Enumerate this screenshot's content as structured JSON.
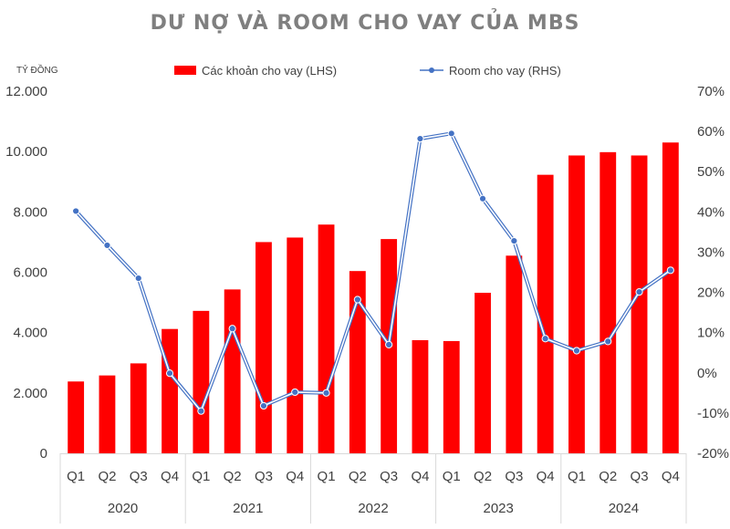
{
  "chart_data": {
    "type": "bar+line",
    "title": "DƯ NỢ VÀ ROOM CHO VAY CỦA MBS",
    "left_unit": "TỶ ĐỒNG",
    "categories": [
      "Q1",
      "Q2",
      "Q3",
      "Q4",
      "Q1",
      "Q2",
      "Q3",
      "Q4",
      "Q1",
      "Q2",
      "Q3",
      "Q4",
      "Q1",
      "Q2",
      "Q3",
      "Q4",
      "Q1",
      "Q2",
      "Q3",
      "Q4"
    ],
    "years": [
      "2020",
      "2021",
      "2022",
      "2023",
      "2024"
    ],
    "series": [
      {
        "name": "Các khoản cho vay (LHS)",
        "type": "bar",
        "axis": "left",
        "color": "#ff0000",
        "values": [
          2380,
          2580,
          2980,
          4120,
          4720,
          5430,
          7000,
          7150,
          7580,
          6040,
          7100,
          3750,
          3720,
          5320,
          6550,
          9230,
          9870,
          9980,
          9870,
          10300
        ]
      },
      {
        "name": "Room cho vay (RHS)",
        "type": "line",
        "axis": "right",
        "color": "#4472c4",
        "values": [
          40.2,
          31.7,
          23.5,
          -0.1,
          -9.5,
          11.0,
          -8.2,
          -4.8,
          -5.0,
          18.2,
          7.0,
          58.2,
          59.5,
          43.3,
          32.8,
          8.5,
          5.5,
          7.8,
          20.1,
          25.5
        ]
      }
    ],
    "left_axis": {
      "ylim": [
        0,
        12000
      ],
      "ticks": [
        "0",
        "2.000",
        "4.000",
        "6.000",
        "8.000",
        "10.000",
        "12.000"
      ]
    },
    "right_axis": {
      "ylim": [
        -20,
        70
      ],
      "ticks": [
        "-20%",
        "-10%",
        "0%",
        "10%",
        "20%",
        "30%",
        "40%",
        "50%",
        "60%",
        "70%"
      ]
    },
    "grid": false,
    "legend_position": "top"
  }
}
